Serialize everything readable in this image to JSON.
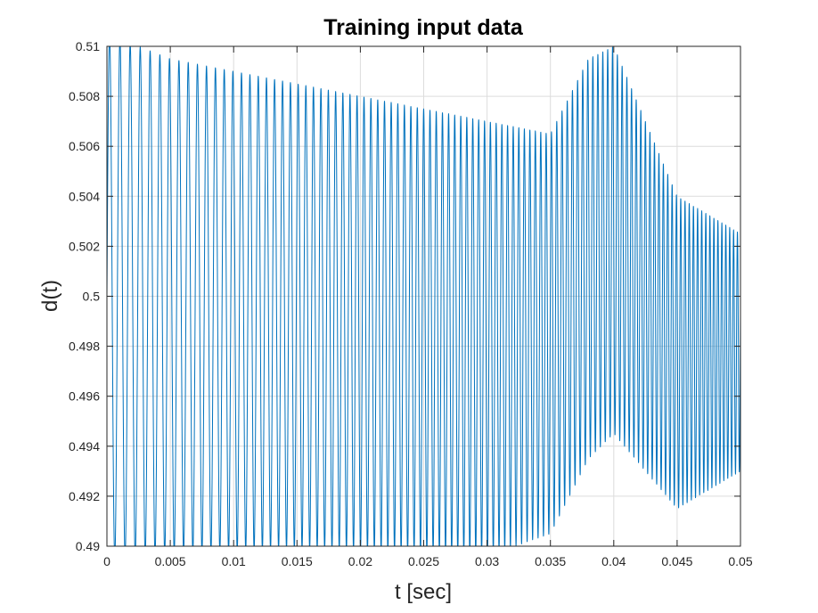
{
  "chart_data": {
    "type": "line",
    "title": "Training input data",
    "xlabel": "t [sec]",
    "ylabel": "d(t)",
    "xlim": [
      0,
      0.05
    ],
    "ylim": [
      0.49,
      0.51
    ],
    "x_ticks": [
      0,
      0.005,
      0.01,
      0.015,
      0.02,
      0.025,
      0.03,
      0.035,
      0.04,
      0.045,
      0.05
    ],
    "x_tick_labels": [
      "0",
      "0.005",
      "0.01",
      "0.015",
      "0.02",
      "0.025",
      "0.03",
      "0.035",
      "0.04",
      "0.045",
      "0.05"
    ],
    "y_ticks": [
      0.49,
      0.492,
      0.494,
      0.496,
      0.498,
      0.5,
      0.502,
      0.504,
      0.506,
      0.508,
      0.51
    ],
    "y_tick_labels": [
      "0.49",
      "0.492",
      "0.494",
      "0.496",
      "0.498",
      "0.5",
      "0.502",
      "0.504",
      "0.506",
      "0.508",
      "0.51"
    ],
    "grid": true,
    "line_color": "#0072BD",
    "series": [
      {
        "x": [
          0,
          0.005,
          0.01,
          0.015,
          0.02,
          0.025,
          0.03,
          0.035,
          0.038,
          0.04,
          0.045,
          0.05
        ],
        "upper_envelope": [
          0.5105,
          0.5095,
          0.509,
          0.5085,
          0.508,
          0.5075,
          0.507,
          0.5065,
          0.5095,
          0.51,
          0.504,
          0.5025
        ],
        "lower_envelope": [
          0.4895,
          0.4897,
          0.4898,
          0.4899,
          0.4898,
          0.4897,
          0.4896,
          0.4905,
          0.4935,
          0.4945,
          0.4915,
          0.493
        ],
        "period_sec": [
          0.00083,
          0.00075,
          0.00068,
          0.00061,
          0.00055,
          0.0005,
          0.00046,
          0.00042,
          0.0004,
          0.00038,
          0.00034,
          0.0003
        ]
      }
    ]
  }
}
